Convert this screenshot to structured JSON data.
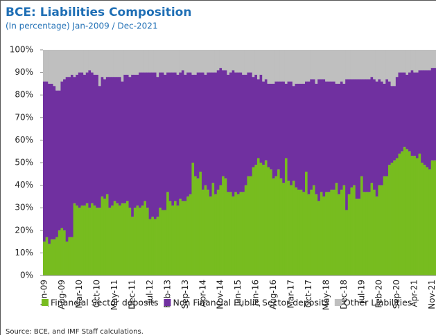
{
  "chart_data": {
    "type": "stacked_area",
    "title": "BCE: Liabilities Composition",
    "subtitle": "(In percentage) Jan-2009 / Dec-2021",
    "source": "Source: BCE, and IMF Staff calculations.",
    "categories": [
      "Jan-09",
      null,
      null,
      null,
      null,
      null,
      null,
      "Aug-09",
      null,
      null,
      null,
      null,
      null,
      null,
      "Mar-10",
      null,
      null,
      null,
      null,
      null,
      null,
      "Oct-10",
      null,
      null,
      null,
      null,
      null,
      null,
      "May-11",
      null,
      null,
      null,
      null,
      null,
      null,
      "Dec-11",
      null,
      null,
      null,
      null,
      null,
      null,
      "Jul-12",
      null,
      null,
      null,
      null,
      null,
      null,
      "Feb-13",
      null,
      null,
      null,
      null,
      null,
      null,
      "Sep-13",
      null,
      null,
      null,
      null,
      null,
      null,
      "Apr-14",
      null,
      null,
      null,
      null,
      null,
      null,
      "Nov-14",
      null,
      null,
      null,
      null,
      null,
      null,
      "Jun-15",
      null,
      null,
      null,
      null,
      null,
      null,
      "Jan-16",
      null,
      null,
      null,
      null,
      null,
      null,
      "Aug-16",
      null,
      null,
      null,
      null,
      null,
      null,
      "Mar-17",
      null,
      null,
      null,
      null,
      null,
      null,
      "Oct-17",
      null,
      null,
      null,
      null,
      null,
      null,
      "May-18",
      null,
      null,
      null,
      null,
      null,
      null,
      "Dec-18",
      null,
      null,
      null,
      null,
      null,
      null,
      "Jul-19",
      null,
      null,
      null,
      null,
      null,
      null,
      "Feb-20",
      null,
      null,
      null,
      null,
      null,
      null,
      "Sep-20",
      null,
      null,
      null,
      null,
      null,
      null,
      "Apr-21",
      null,
      null,
      null,
      null,
      null,
      null,
      "Nov-21",
      null
    ],
    "series": [
      {
        "name": "Financial Sector deposits",
        "color": "#77bc1f",
        "values": [
          15,
          17,
          14,
          16,
          16,
          17,
          20,
          21,
          20,
          15,
          17,
          17,
          32,
          31,
          30,
          31,
          31,
          32,
          30,
          32,
          31,
          30,
          30,
          35,
          34,
          36,
          30,
          31,
          33,
          32,
          31,
          32,
          32,
          33,
          30,
          26,
          30,
          31,
          30,
          31,
          33,
          30,
          25,
          26,
          25,
          26,
          30,
          29,
          29,
          37,
          33,
          31,
          33,
          31,
          34,
          33,
          33,
          35,
          36,
          50,
          44,
          43,
          46,
          38,
          40,
          38,
          35,
          41,
          36,
          38,
          40,
          44,
          43,
          37,
          37,
          35,
          37,
          36,
          37,
          37,
          40,
          44,
          44,
          48,
          49,
          52,
          50,
          49,
          51,
          48,
          47,
          43,
          44,
          47,
          43,
          41,
          52,
          42,
          40,
          42,
          39,
          38,
          38,
          37,
          46,
          36,
          38,
          40,
          36,
          33,
          37,
          35,
          37,
          37,
          38,
          38,
          41,
          36,
          38,
          40,
          29,
          36,
          39,
          40,
          34,
          34,
          44,
          37,
          37,
          37,
          41,
          38,
          35,
          40,
          40,
          44,
          44,
          49,
          50,
          51,
          52,
          54,
          55,
          57,
          56,
          55,
          53,
          53,
          52,
          54,
          50,
          49,
          48,
          47,
          51,
          51
        ]
      },
      {
        "name": "Non Financial Public Sector deposits",
        "color": "#7030a0",
        "values": [
          71,
          69,
          71,
          69,
          68,
          65,
          62,
          65,
          67,
          73,
          71,
          72,
          56,
          58,
          60,
          59,
          58,
          58,
          61,
          58,
          58,
          59,
          54,
          53,
          53,
          52,
          58,
          57,
          55,
          56,
          57,
          54,
          57,
          56,
          58,
          63,
          59,
          58,
          60,
          59,
          57,
          60,
          65,
          64,
          65,
          62,
          60,
          61,
          60,
          53,
          57,
          59,
          57,
          58,
          56,
          58,
          56,
          55,
          54,
          39,
          45,
          47,
          44,
          52,
          49,
          52,
          55,
          49,
          54,
          53,
          52,
          47,
          48,
          52,
          53,
          56,
          53,
          54,
          53,
          52,
          49,
          46,
          46,
          40,
          40,
          35,
          39,
          37,
          36,
          37,
          38,
          42,
          42,
          39,
          43,
          45,
          33,
          44,
          46,
          42,
          46,
          47,
          47,
          48,
          40,
          50,
          49,
          47,
          49,
          54,
          50,
          52,
          49,
          49,
          48,
          48,
          44,
          49,
          48,
          45,
          58,
          51,
          48,
          47,
          53,
          53,
          43,
          50,
          50,
          50,
          47,
          49,
          51,
          47,
          46,
          41,
          43,
          37,
          34,
          33,
          36,
          36,
          35,
          33,
          33,
          35,
          38,
          37,
          38,
          37,
          41,
          42,
          43,
          44,
          41,
          41
        ]
      },
      {
        "name": "Other Liabilities",
        "color": "#bfbfbf",
        "values": [
          14,
          14,
          15,
          15,
          16,
          18,
          18,
          14,
          13,
          12,
          12,
          11,
          12,
          11,
          10,
          10,
          11,
          10,
          9,
          10,
          11,
          11,
          16,
          12,
          13,
          12,
          12,
          12,
          12,
          12,
          12,
          14,
          11,
          11,
          12,
          11,
          11,
          11,
          10,
          10,
          10,
          10,
          10,
          10,
          10,
          12,
          10,
          10,
          11,
          10,
          10,
          10,
          10,
          11,
          10,
          9,
          11,
          10,
          10,
          11,
          11,
          10,
          10,
          10,
          11,
          10,
          10,
          10,
          10,
          9,
          8,
          9,
          9,
          11,
          10,
          9,
          10,
          10,
          10,
          11,
          11,
          10,
          10,
          12,
          11,
          13,
          11,
          14,
          13,
          15,
          15,
          15,
          14,
          14,
          14,
          14,
          15,
          14,
          14,
          16,
          15,
          15,
          15,
          15,
          14,
          14,
          13,
          13,
          15,
          13,
          13,
          13,
          14,
          14,
          14,
          14,
          15,
          15,
          14,
          15,
          13,
          13,
          13,
          13,
          13,
          13,
          13,
          13,
          13,
          13,
          12,
          13,
          14,
          13,
          14,
          15,
          13,
          14,
          16,
          16,
          12,
          10,
          10,
          10,
          11,
          10,
          9,
          10,
          10,
          9,
          9,
          9,
          9,
          9,
          8,
          8
        ]
      }
    ],
    "ylim": [
      0,
      100
    ],
    "yticks": [
      {
        "value": 0,
        "label": "0%"
      },
      {
        "value": 10,
        "label": "10%"
      },
      {
        "value": 20,
        "label": "20%"
      },
      {
        "value": 30,
        "label": "30%"
      },
      {
        "value": 40,
        "label": "40%"
      },
      {
        "value": 50,
        "label": "50%"
      },
      {
        "value": 60,
        "label": "60%"
      },
      {
        "value": 70,
        "label": "70%"
      },
      {
        "value": 80,
        "label": "80%"
      },
      {
        "value": 90,
        "label": "90%"
      },
      {
        "value": 100,
        "label": "100%"
      }
    ],
    "legend": "bottom"
  }
}
